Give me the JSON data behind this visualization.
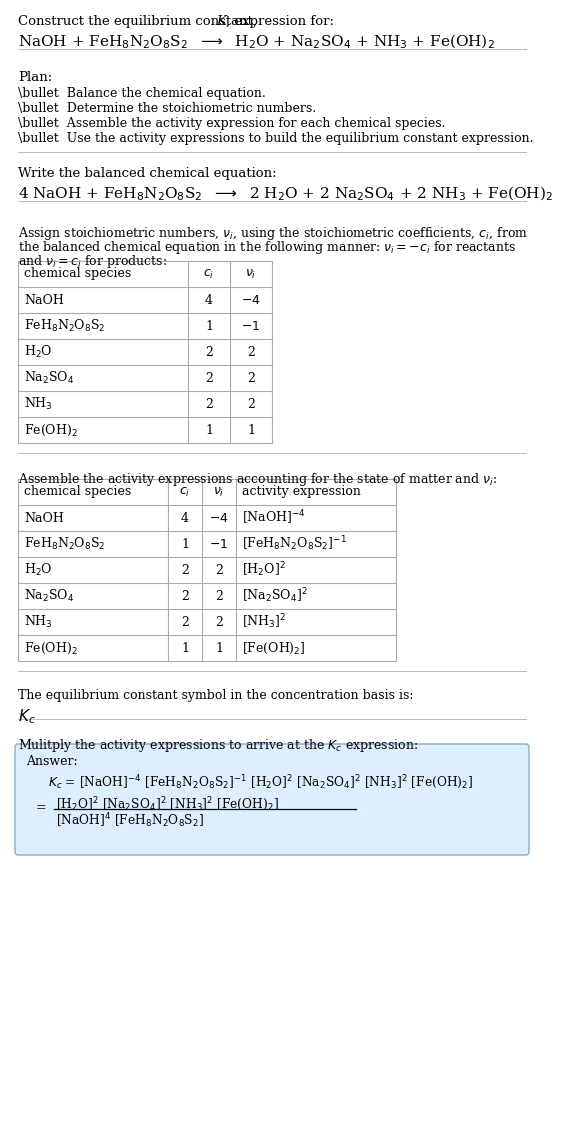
{
  "bg_color": "#ffffff",
  "text_color": "#000000",
  "table_border_color": "#aaaaaa",
  "answer_box_facecolor": "#ddeeff",
  "answer_box_edgecolor": "#88aacc",
  "font_size": 9.0,
  "chem_font_size": 10.5,
  "title_text": "Construct the equilibrium constant, ",
  "title_K": "K",
  "title_end": ", expression for:",
  "unbalanced_rxn": "NaOH + FeH$_8$N$_2$O$_8$S$_2$  $\\longrightarrow$  H$_2$O + Na$_2$SO$_4$ + NH$_3$ + Fe(OH)$_2$",
  "plan_header": "Plan:",
  "plan_items": [
    "\\bullet  Balance the chemical equation.",
    "\\bullet  Determine the stoichiometric numbers.",
    "\\bullet  Assemble the activity expression for each chemical species.",
    "\\bullet  Use the activity expressions to build the equilibrium constant expression."
  ],
  "balanced_header": "Write the balanced chemical equation:",
  "balanced_rxn": "4 NaOH + FeH$_8$N$_2$O$_8$S$_2$  $\\longrightarrow$  2 H$_2$O + 2 Na$_2$SO$_4$ + 2 NH$_3$ + Fe(OH)$_2$",
  "stoich_line1": "Assign stoichiometric numbers, $\\nu_i$, using the stoichiometric coefficients, $c_i$, from",
  "stoich_line2": "the balanced chemical equation in the following manner: $\\nu_i = -c_i$ for reactants",
  "stoich_line3": "and $\\nu_i = c_i$ for products:",
  "table1_cols": [
    "chemical species",
    "$c_i$",
    "$\\nu_i$"
  ],
  "table1_data": [
    [
      "NaOH",
      "4",
      "$-4$"
    ],
    [
      "FeH$_8$N$_2$O$_8$S$_2$",
      "1",
      "$-1$"
    ],
    [
      "H$_2$O",
      "2",
      "2"
    ],
    [
      "Na$_2$SO$_4$",
      "2",
      "2"
    ],
    [
      "NH$_3$",
      "2",
      "2"
    ],
    [
      "Fe(OH)$_2$",
      "1",
      "1"
    ]
  ],
  "activity_header": "Assemble the activity expressions accounting for the state of matter and $\\nu_i$:",
  "table2_cols": [
    "chemical species",
    "$c_i$",
    "$\\nu_i$",
    "activity expression"
  ],
  "table2_data": [
    [
      "NaOH",
      "4",
      "$-4$",
      "[NaOH]$^{-4}$"
    ],
    [
      "FeH$_8$N$_2$O$_8$S$_2$",
      "1",
      "$-1$",
      "[FeH$_8$N$_2$O$_8$S$_2$]$^{-1}$"
    ],
    [
      "H$_2$O",
      "2",
      "2",
      "[H$_2$O]$^2$"
    ],
    [
      "Na$_2$SO$_4$",
      "2",
      "2",
      "[Na$_2$SO$_4$]$^2$"
    ],
    [
      "NH$_3$",
      "2",
      "2",
      "[NH$_3$]$^2$"
    ],
    [
      "Fe(OH)$_2$",
      "1",
      "1",
      "[Fe(OH)$_2$]"
    ]
  ],
  "kc_header": "The equilibrium constant symbol in the concentration basis is:",
  "kc_symbol": "$K_c$",
  "multiply_header": "Mulitply the activity expressions to arrive at the $K_c$ expression:",
  "answer_label": "Answer:",
  "kc_eq_line1": "$K_c$ = [NaOH]$^{-4}$ [FeH$_8$N$_2$O$_8$S$_2$]$^{-1}$ [H$_2$O]$^2$ [Na$_2$SO$_4$]$^2$ [NH$_3$]$^2$ [Fe(OH)$_2$]",
  "kc_num": "[H$_2$O]$^2$ [Na$_2$SO$_4$]$^2$ [NH$_3$]$^2$ [Fe(OH)$_2$]",
  "kc_den": "[NaOH]$^4$ [FeH$_8$N$_2$O$_8$S$_2$]"
}
